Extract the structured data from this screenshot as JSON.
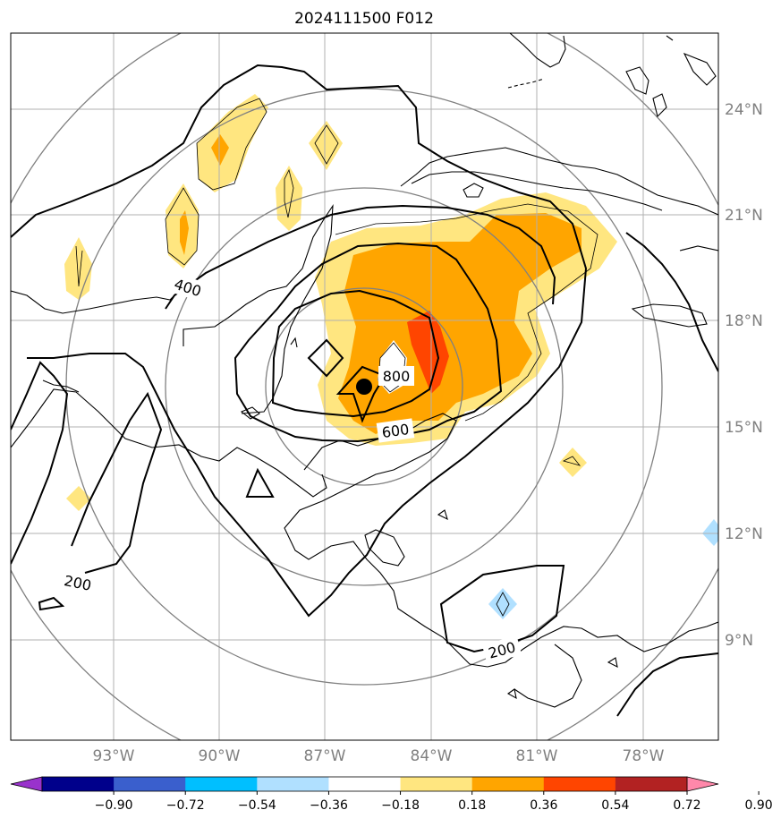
{
  "map": {
    "title": "2024111500 F012",
    "lon_labels": [
      "93°W",
      "90°W",
      "87°W",
      "84°W",
      "81°W",
      "78°W"
    ],
    "lat_labels": [
      "24°N",
      "21°N",
      "18°N",
      "15°N",
      "12°N",
      "9°N"
    ],
    "contour_labels": [
      "400",
      "800",
      "600",
      "200",
      "200"
    ],
    "storm_center": {
      "lat": 16.1,
      "lon": -85.9
    }
  },
  "colorbar": {
    "ticks": [
      "−0.90",
      "−0.72",
      "−0.54",
      "−0.36",
      "−0.18",
      "0.18",
      "0.36",
      "0.54",
      "0.72",
      "0.90"
    ],
    "colors": [
      "#9932cc",
      "#00008b",
      "#3a5fcd",
      "#00bfff",
      "#b0e0ff",
      "#ffffff",
      "#ffe680",
      "#ffa500",
      "#ff4500",
      "#b22222",
      "#ff88aa"
    ]
  },
  "fill_colors": {
    "light": "#ffe680",
    "orange": "#ffa500",
    "red": "#ff4500",
    "lightblue": "#b0e0ff"
  }
}
